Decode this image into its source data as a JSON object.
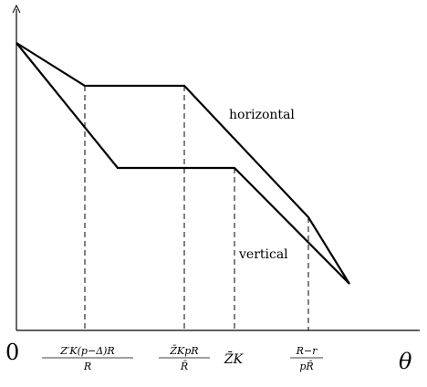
{
  "labels": {
    "origin": "0",
    "x_axis": "θ",
    "horizontal": "horizontal",
    "vertical": "vertical"
  },
  "ticks": [
    {
      "id": "z-prime-k",
      "numerator": "Z′K(p−Δ)R",
      "denominator": "R"
    },
    {
      "id": "z-bar-k-pr",
      "numerator": "Z̄KpR",
      "denominator": "R̄"
    },
    {
      "id": "z-bar-k",
      "text": "Z̄K"
    },
    {
      "id": "r-minus-r",
      "numerator": "R−r",
      "denominator": "pR̄"
    }
  ],
  "curves": [
    {
      "name": "horizontal",
      "description_free": true
    },
    {
      "name": "vertical",
      "description_free": true
    }
  ]
}
